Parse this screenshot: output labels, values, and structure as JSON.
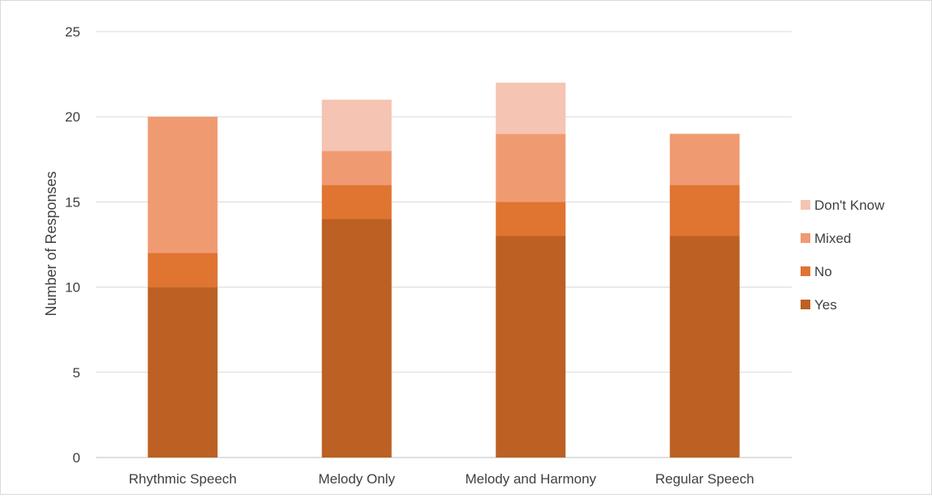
{
  "chart_data": {
    "type": "bar",
    "stacked": true,
    "categories": [
      "Rhythmic Speech",
      "Melody Only",
      "Melody and Harmony",
      "Regular Speech"
    ],
    "series": [
      {
        "name": "Yes",
        "values": [
          10,
          14,
          13,
          13
        ],
        "color": "#BC6023"
      },
      {
        "name": "No",
        "values": [
          2,
          2,
          2,
          3
        ],
        "color": "#E07431"
      },
      {
        "name": "Mixed",
        "values": [
          8,
          2,
          4,
          3
        ],
        "color": "#F09A72"
      },
      {
        "name": "Don't Know",
        "values": [
          0,
          3,
          3,
          0
        ],
        "color": "#F5C4B2"
      }
    ],
    "ylabel": "Number of Responses",
    "ylim": [
      0,
      25
    ],
    "yticks": [
      "0",
      "5",
      "10",
      "15",
      "20",
      "25"
    ],
    "grid": true,
    "legend": "right"
  }
}
